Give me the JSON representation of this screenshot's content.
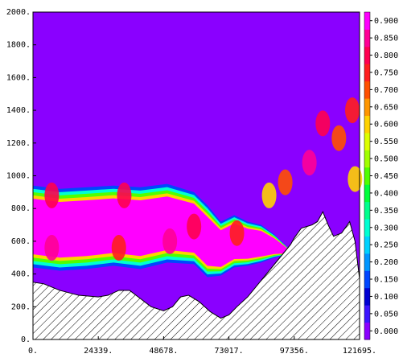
{
  "chart_data": {
    "type": "heatmap",
    "title": "",
    "xlabel": "",
    "ylabel": "",
    "xlim": [
      0,
      121695
    ],
    "ylim": [
      0,
      2000
    ],
    "x_ticks": [
      "0.",
      "24339.",
      "48678.",
      "73017.",
      "97356.",
      "121695."
    ],
    "y_ticks": [
      "0.",
      "200.",
      "400.",
      "600.",
      "800.",
      "1000.",
      "1200.",
      "1400.",
      "1600.",
      "1800.",
      "2000."
    ],
    "colorbar": {
      "placement": "right",
      "labels": [
        "0.000",
        "0.050",
        "0.100",
        "0.150",
        "0.200",
        "0.250",
        "0.300",
        "0.350",
        "0.400",
        "0.450",
        "0.500",
        "0.550",
        "0.600",
        "0.650",
        "0.700",
        "0.750",
        "0.800",
        "0.850",
        "0.900"
      ],
      "colors": [
        "#8a00ff",
        "#3c14ff",
        "#0000d2",
        "#0046ff",
        "#0096ff",
        "#00d2ff",
        "#00ffd2",
        "#00ff8c",
        "#00ff3c",
        "#50ff00",
        "#a0ff00",
        "#dcff00",
        "#ffd200",
        "#ff9600",
        "#ff5000",
        "#ff1e1e",
        "#ff0050",
        "#ff0096",
        "#ff00ff"
      ]
    },
    "terrain_hatched": true,
    "terrain": {
      "x": [
        0,
        4000,
        10000,
        17000,
        24339,
        28000,
        32000,
        36000,
        40000,
        44000,
        48678,
        52000,
        55000,
        58000,
        62000,
        66000,
        70000,
        73017,
        76000,
        80000,
        84000,
        88000,
        92000,
        96000,
        97356,
        100000,
        104000,
        106000,
        108000,
        110000,
        112000,
        115000,
        118000,
        120000,
        121695
      ],
      "y": [
        350,
        340,
        300,
        270,
        260,
        270,
        300,
        300,
        250,
        200,
        175,
        200,
        260,
        270,
        230,
        170,
        130,
        150,
        200,
        260,
        340,
        420,
        500,
        580,
        620,
        680,
        700,
        720,
        780,
        700,
        630,
        650,
        720,
        600,
        370
      ]
    },
    "layer": {
      "x": [
        0,
        10000,
        20000,
        30000,
        40000,
        50000,
        60000,
        65000,
        70000,
        75000,
        80000,
        85000,
        90000,
        95000
      ],
      "base": [
        440,
        420,
        430,
        450,
        430,
        470,
        460,
        380,
        390,
        440,
        450,
        470,
        500,
        520
      ],
      "top": [
        940,
        920,
        930,
        940,
        930,
        950,
        900,
        820,
        720,
        760,
        720,
        700,
        640,
        560
      ]
    },
    "cells": [
      {
        "x": 7000,
        "y": 560,
        "v": 0.85
      },
      {
        "x": 7000,
        "y": 880,
        "v": 0.8
      },
      {
        "x": 32000,
        "y": 560,
        "v": 0.75
      },
      {
        "x": 34000,
        "y": 880,
        "v": 0.8
      },
      {
        "x": 51000,
        "y": 600,
        "v": 0.85
      },
      {
        "x": 60000,
        "y": 690,
        "v": 0.8
      },
      {
        "x": 76000,
        "y": 650,
        "v": 0.75
      },
      {
        "x": 88000,
        "y": 880,
        "v": 0.6
      },
      {
        "x": 94000,
        "y": 960,
        "v": 0.7
      },
      {
        "x": 103000,
        "y": 1080,
        "v": 0.85
      },
      {
        "x": 108000,
        "y": 1320,
        "v": 0.8
      },
      {
        "x": 114000,
        "y": 1230,
        "v": 0.7
      },
      {
        "x": 119000,
        "y": 1400,
        "v": 0.75
      },
      {
        "x": 120000,
        "y": 980,
        "v": 0.6
      }
    ]
  }
}
